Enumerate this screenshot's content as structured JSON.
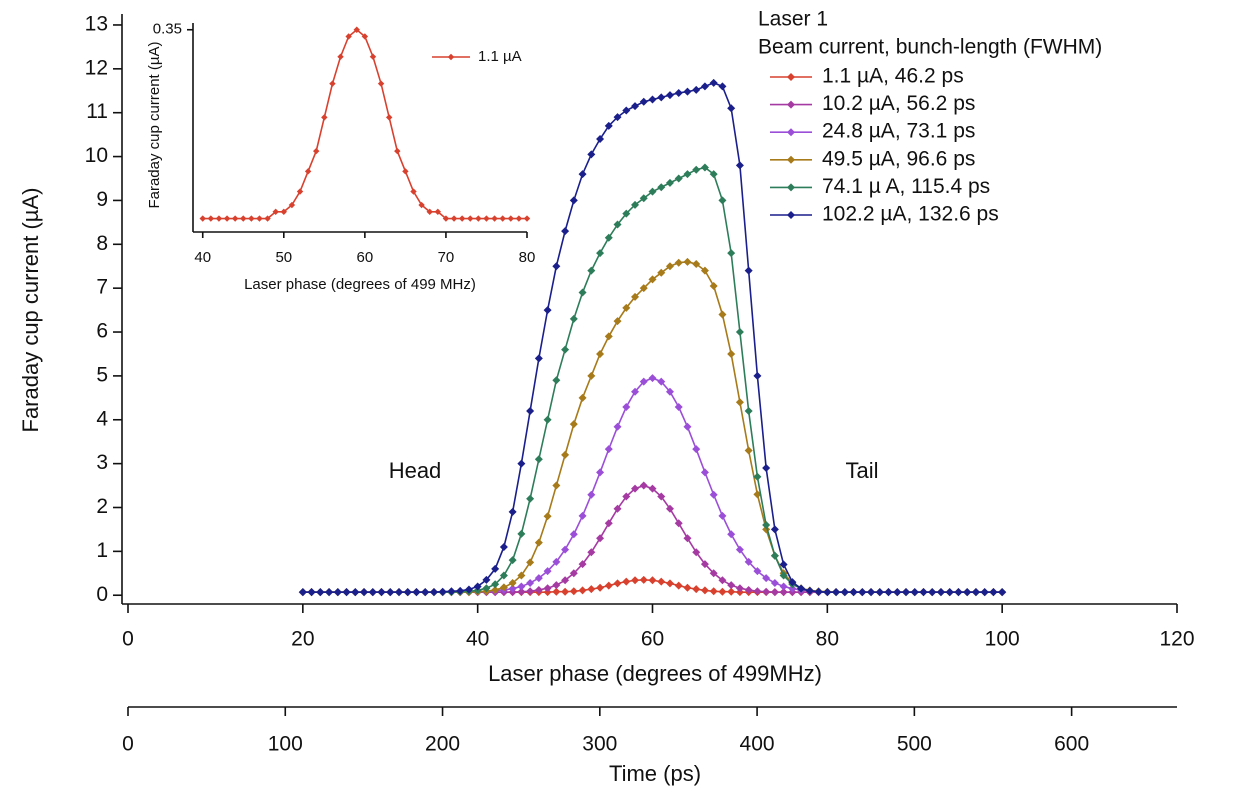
{
  "chart_data": [
    {
      "type": "line",
      "xlabel": "Laser phase (degrees of 499MHz)",
      "ylabel": "Faraday cup current (µA)",
      "x2label": "Time (ps)",
      "legend_title": [
        "Laser 1",
        "Beam current, bunch-length (FWHM)"
      ],
      "annotations": [
        "Head",
        "Tail"
      ],
      "xlim": [
        0,
        120
      ],
      "xticks": [
        0,
        20,
        40,
        60,
        80,
        100,
        120
      ],
      "ylim": [
        -0.2,
        13.25
      ],
      "yticks": [
        0,
        1,
        2,
        3,
        4,
        5,
        6,
        7,
        8,
        9,
        10,
        11,
        12,
        13
      ],
      "x2lim": [
        0,
        667
      ],
      "x2ticks": [
        0,
        100,
        200,
        300,
        400,
        500,
        600
      ],
      "x": [
        20,
        21,
        22,
        23,
        24,
        25,
        26,
        27,
        28,
        29,
        30,
        31,
        32,
        33,
        34,
        35,
        36,
        37,
        38,
        39,
        40,
        41,
        42,
        43,
        44,
        45,
        46,
        47,
        48,
        49,
        50,
        51,
        52,
        53,
        54,
        55,
        56,
        57,
        58,
        59,
        60,
        61,
        62,
        63,
        64,
        65,
        66,
        67,
        68,
        69,
        70,
        71,
        72,
        73,
        74,
        75,
        76,
        77,
        78,
        79,
        80,
        81,
        82,
        83,
        84,
        85,
        86,
        87,
        88,
        89,
        90,
        91,
        92,
        93,
        94,
        95,
        96,
        97,
        98,
        99,
        100
      ],
      "series": [
        {
          "name": "1.1 µA, 46.2 ps",
          "color": "#d9412f",
          "values": [
            0.07,
            0.07,
            0.07,
            0.07,
            0.07,
            0.07,
            0.07,
            0.07,
            0.07,
            0.07,
            0.07,
            0.07,
            0.07,
            0.07,
            0.07,
            0.07,
            0.07,
            0.07,
            0.07,
            0.07,
            0.07,
            0.07,
            0.07,
            0.07,
            0.07,
            0.07,
            0.07,
            0.07,
            0.07,
            0.08,
            0.08,
            0.09,
            0.11,
            0.14,
            0.17,
            0.22,
            0.27,
            0.31,
            0.34,
            0.35,
            0.34,
            0.31,
            0.27,
            0.22,
            0.17,
            0.14,
            0.11,
            0.09,
            0.08,
            0.08,
            0.07,
            0.07,
            0.07,
            0.07,
            0.07,
            0.07,
            0.07,
            0.07,
            0.07,
            0.07,
            0.07,
            0.07,
            0.07,
            0.07,
            0.07,
            0.07,
            0.07,
            0.07,
            0.07,
            0.07,
            0.07,
            0.07,
            0.07,
            0.07,
            0.07,
            0.07,
            0.07,
            0.07,
            0.07,
            0.07,
            0.07
          ]
        },
        {
          "name": "10.2 µA, 56.2 ps",
          "color": "#a63aa3",
          "values": [
            0.07,
            0.07,
            0.07,
            0.07,
            0.07,
            0.07,
            0.07,
            0.07,
            0.07,
            0.07,
            0.07,
            0.07,
            0.07,
            0.07,
            0.07,
            0.07,
            0.07,
            0.07,
            0.07,
            0.07,
            0.07,
            0.07,
            0.07,
            0.07,
            0.07,
            0.08,
            0.09,
            0.12,
            0.16,
            0.23,
            0.34,
            0.5,
            0.71,
            0.98,
            1.3,
            1.64,
            1.97,
            2.25,
            2.43,
            2.5,
            2.43,
            2.25,
            1.97,
            1.64,
            1.3,
            0.98,
            0.71,
            0.5,
            0.34,
            0.23,
            0.16,
            0.12,
            0.09,
            0.08,
            0.07,
            0.07,
            0.07,
            0.07,
            0.07,
            0.07,
            0.07,
            0.07,
            0.07,
            0.07,
            0.07,
            0.07,
            0.07,
            0.07,
            0.07,
            0.07,
            0.07,
            0.07,
            0.07,
            0.07,
            0.07,
            0.07,
            0.07,
            0.07,
            0.07,
            0.07,
            0.07
          ]
        },
        {
          "name": "24.8 µA, 73.1 ps",
          "color": "#9b4fd8",
          "values": [
            0.07,
            0.07,
            0.07,
            0.07,
            0.07,
            0.07,
            0.07,
            0.07,
            0.07,
            0.07,
            0.07,
            0.07,
            0.07,
            0.07,
            0.07,
            0.07,
            0.07,
            0.07,
            0.07,
            0.07,
            0.07,
            0.08,
            0.1,
            0.12,
            0.15,
            0.2,
            0.28,
            0.39,
            0.55,
            0.76,
            1.04,
            1.39,
            1.81,
            2.29,
            2.8,
            3.33,
            3.84,
            4.29,
            4.64,
            4.87,
            4.95,
            4.87,
            4.64,
            4.29,
            3.84,
            3.33,
            2.8,
            2.29,
            1.81,
            1.39,
            1.04,
            0.76,
            0.55,
            0.39,
            0.28,
            0.2,
            0.15,
            0.12,
            0.1,
            0.08,
            0.07,
            0.07,
            0.07,
            0.07,
            0.07,
            0.07,
            0.07,
            0.07,
            0.07,
            0.07,
            0.07,
            0.07,
            0.07,
            0.07,
            0.07,
            0.07,
            0.07,
            0.07,
            0.07,
            0.07,
            0.07
          ]
        },
        {
          "name": "49.5 µA, 96.6 ps",
          "color": "#a77a1a",
          "values": [
            0.07,
            0.07,
            0.07,
            0.07,
            0.07,
            0.07,
            0.07,
            0.07,
            0.07,
            0.07,
            0.07,
            0.07,
            0.07,
            0.07,
            0.07,
            0.07,
            0.07,
            0.07,
            0.07,
            0.07,
            0.08,
            0.09,
            0.12,
            0.18,
            0.28,
            0.45,
            0.75,
            1.2,
            1.8,
            2.5,
            3.2,
            3.9,
            4.5,
            5.0,
            5.5,
            5.9,
            6.25,
            6.55,
            6.8,
            7.0,
            7.2,
            7.35,
            7.5,
            7.58,
            7.6,
            7.55,
            7.4,
            7.05,
            6.4,
            5.5,
            4.4,
            3.3,
            2.3,
            1.5,
            0.9,
            0.5,
            0.28,
            0.16,
            0.11,
            0.09,
            0.08,
            0.07,
            0.07,
            0.07,
            0.07,
            0.07,
            0.07,
            0.07,
            0.07,
            0.07,
            0.07,
            0.07,
            0.07,
            0.07,
            0.07,
            0.07,
            0.07,
            0.07,
            0.07,
            0.07,
            0.07
          ]
        },
        {
          "name": "74.1 µ A, 115.4 ps",
          "color": "#2e7d5a",
          "values": [
            0.07,
            0.07,
            0.07,
            0.07,
            0.07,
            0.07,
            0.07,
            0.07,
            0.07,
            0.07,
            0.07,
            0.07,
            0.07,
            0.07,
            0.07,
            0.07,
            0.07,
            0.07,
            0.08,
            0.09,
            0.11,
            0.16,
            0.25,
            0.45,
            0.8,
            1.4,
            2.2,
            3.1,
            4.0,
            4.9,
            5.6,
            6.3,
            6.9,
            7.4,
            7.8,
            8.15,
            8.45,
            8.7,
            8.9,
            9.05,
            9.2,
            9.3,
            9.4,
            9.5,
            9.6,
            9.7,
            9.75,
            9.6,
            9.0,
            7.8,
            6.0,
            4.2,
            2.7,
            1.6,
            0.9,
            0.45,
            0.25,
            0.15,
            0.1,
            0.08,
            0.07,
            0.07,
            0.07,
            0.07,
            0.07,
            0.07,
            0.07,
            0.07,
            0.07,
            0.07,
            0.07,
            0.07,
            0.07,
            0.07,
            0.07,
            0.07,
            0.07,
            0.07,
            0.07,
            0.07,
            0.07
          ]
        },
        {
          "name": "102.2 µA, 132.6 ps",
          "color": "#1a1f8c",
          "values": [
            0.07,
            0.07,
            0.07,
            0.07,
            0.07,
            0.07,
            0.07,
            0.07,
            0.07,
            0.07,
            0.07,
            0.07,
            0.07,
            0.07,
            0.07,
            0.07,
            0.08,
            0.09,
            0.1,
            0.13,
            0.2,
            0.35,
            0.6,
            1.1,
            1.9,
            3.0,
            4.2,
            5.4,
            6.5,
            7.5,
            8.3,
            9.0,
            9.6,
            10.05,
            10.4,
            10.7,
            10.9,
            11.05,
            11.15,
            11.25,
            11.3,
            11.35,
            11.4,
            11.45,
            11.48,
            11.52,
            11.6,
            11.68,
            11.6,
            11.1,
            9.8,
            7.4,
            5.0,
            2.9,
            1.5,
            0.7,
            0.3,
            0.15,
            0.1,
            0.08,
            0.07,
            0.07,
            0.07,
            0.07,
            0.07,
            0.07,
            0.07,
            0.07,
            0.07,
            0.07,
            0.07,
            0.07,
            0.07,
            0.07,
            0.07,
            0.07,
            0.07,
            0.07,
            0.07,
            0.07,
            0.07
          ]
        }
      ]
    },
    {
      "type": "line",
      "xlabel": "Laser phase (degrees of 499 MHz)",
      "ylabel": "Faraday cup current (µA)",
      "xlim": [
        38.8,
        80
      ],
      "xticks": [
        40,
        50,
        60,
        70,
        80
      ],
      "ylim": [
        0.05,
        0.36
      ],
      "yticks": [
        0.35
      ],
      "x": [
        40,
        41,
        42,
        43,
        44,
        45,
        46,
        47,
        48,
        49,
        50,
        51,
        52,
        53,
        54,
        55,
        56,
        57,
        58,
        59,
        60,
        61,
        62,
        63,
        64,
        65,
        66,
        67,
        68,
        69,
        70,
        71,
        72,
        73,
        74,
        75,
        76,
        77,
        78,
        79,
        80
      ],
      "series": [
        {
          "name": "1.1 µA",
          "color": "#d9412f",
          "values": [
            0.07,
            0.07,
            0.07,
            0.07,
            0.07,
            0.07,
            0.07,
            0.07,
            0.07,
            0.08,
            0.08,
            0.09,
            0.11,
            0.14,
            0.17,
            0.22,
            0.27,
            0.31,
            0.34,
            0.35,
            0.34,
            0.31,
            0.27,
            0.22,
            0.17,
            0.14,
            0.11,
            0.09,
            0.08,
            0.08,
            0.07,
            0.07,
            0.07,
            0.07,
            0.07,
            0.07,
            0.07,
            0.07,
            0.07,
            0.07,
            0.07
          ]
        }
      ]
    }
  ]
}
